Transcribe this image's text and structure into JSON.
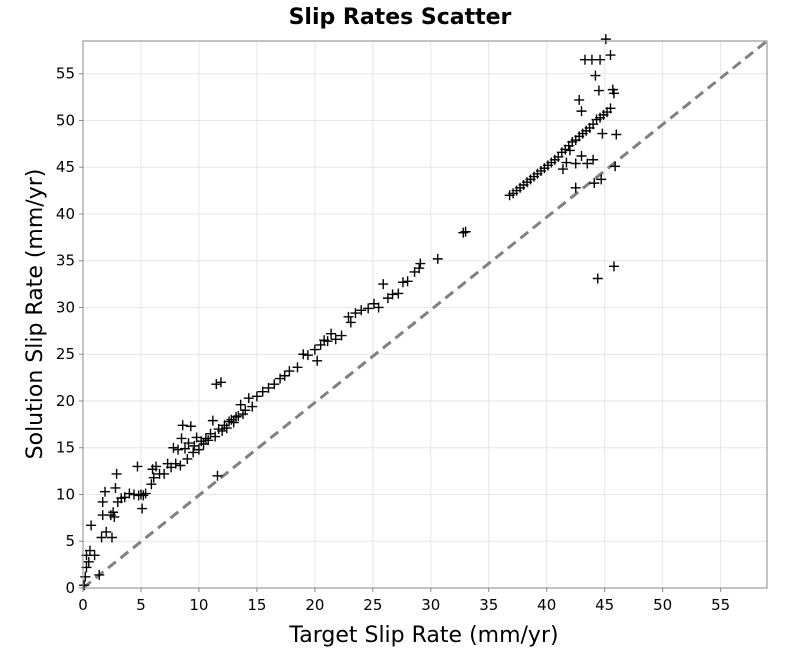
{
  "chart_data": {
    "type": "scatter",
    "title": "Slip Rates Scatter",
    "xlabel": "Target Slip Rate (mm/yr)",
    "ylabel": "Solution Slip Rate (mm/yr)",
    "xlim": [
      0,
      59
    ],
    "ylim": [
      0,
      58.5
    ],
    "xticks": [
      0,
      5,
      10,
      15,
      20,
      25,
      30,
      35,
      40,
      45,
      50,
      55
    ],
    "yticks": [
      0,
      5,
      10,
      15,
      20,
      25,
      30,
      35,
      40,
      45,
      50,
      55
    ],
    "grid": true,
    "reference_line": {
      "style": "dashed",
      "color": "#808080",
      "from": [
        0,
        0
      ],
      "to": [
        59,
        59
      ]
    },
    "marker": "plus",
    "marker_color": "#000000",
    "points": [
      [
        0.1,
        0.3
      ],
      [
        0.2,
        1.2
      ],
      [
        0.3,
        2.2
      ],
      [
        0.3,
        3.5
      ],
      [
        0.5,
        2.8
      ],
      [
        0.6,
        4.0
      ],
      [
        0.7,
        6.7
      ],
      [
        1.0,
        3.5
      ],
      [
        1.4,
        1.4
      ],
      [
        1.6,
        5.4
      ],
      [
        1.7,
        9.2
      ],
      [
        1.7,
        7.8
      ],
      [
        1.9,
        10.3
      ],
      [
        2.0,
        6.0
      ],
      [
        2.4,
        7.8
      ],
      [
        2.5,
        5.4
      ],
      [
        2.6,
        8.1
      ],
      [
        2.7,
        7.6
      ],
      [
        2.8,
        10.7
      ],
      [
        2.9,
        12.2
      ],
      [
        3.0,
        9.2
      ],
      [
        3.3,
        9.6
      ],
      [
        3.6,
        9.7
      ],
      [
        4.0,
        10.1
      ],
      [
        4.4,
        10.0
      ],
      [
        4.7,
        13.0
      ],
      [
        4.8,
        9.9
      ],
      [
        5.0,
        10.0
      ],
      [
        5.1,
        8.5
      ],
      [
        5.2,
        9.9
      ],
      [
        5.4,
        10.1
      ],
      [
        5.9,
        11.1
      ],
      [
        6.0,
        12.7
      ],
      [
        6.1,
        11.8
      ],
      [
        6.3,
        13.0
      ],
      [
        6.6,
        12.2
      ],
      [
        7.0,
        12.2
      ],
      [
        7.3,
        13.3
      ],
      [
        7.6,
        12.9
      ],
      [
        7.8,
        15.0
      ],
      [
        8.0,
        13.3
      ],
      [
        8.2,
        14.8
      ],
      [
        8.4,
        13.1
      ],
      [
        8.5,
        16.0
      ],
      [
        8.6,
        17.4
      ],
      [
        8.8,
        14.9
      ],
      [
        9.0,
        13.8
      ],
      [
        9.1,
        15.5
      ],
      [
        9.3,
        17.3
      ],
      [
        9.5,
        14.5
      ],
      [
        9.6,
        15.2
      ],
      [
        9.8,
        16.1
      ],
      [
        10.0,
        14.8
      ],
      [
        10.2,
        15.7
      ],
      [
        10.4,
        15.4
      ],
      [
        10.6,
        16.0
      ],
      [
        10.8,
        15.8
      ],
      [
        11.0,
        16.5
      ],
      [
        11.2,
        17.9
      ],
      [
        11.4,
        16.2
      ],
      [
        11.5,
        21.8
      ],
      [
        11.6,
        12.0
      ],
      [
        11.7,
        17.0
      ],
      [
        11.9,
        22.0
      ],
      [
        12.0,
        16.8
      ],
      [
        12.2,
        17.4
      ],
      [
        12.4,
        17.1
      ],
      [
        12.6,
        17.8
      ],
      [
        12.8,
        18.0
      ],
      [
        13.0,
        17.7
      ],
      [
        13.2,
        18.3
      ],
      [
        13.4,
        18.4
      ],
      [
        13.6,
        19.6
      ],
      [
        13.8,
        18.6
      ],
      [
        14.0,
        19.0
      ],
      [
        14.3,
        20.3
      ],
      [
        14.6,
        19.4
      ],
      [
        15.0,
        20.5
      ],
      [
        15.5,
        21.0
      ],
      [
        16.0,
        21.4
      ],
      [
        16.5,
        21.8
      ],
      [
        17.0,
        22.4
      ],
      [
        17.4,
        22.7
      ],
      [
        17.8,
        23.2
      ],
      [
        18.5,
        23.6
      ],
      [
        19.0,
        25.0
      ],
      [
        19.4,
        24.9
      ],
      [
        20.0,
        25.5
      ],
      [
        20.2,
        24.3
      ],
      [
        20.5,
        26.0
      ],
      [
        20.8,
        26.5
      ],
      [
        21.1,
        26.4
      ],
      [
        21.4,
        27.2
      ],
      [
        21.8,
        26.6
      ],
      [
        22.3,
        27.0
      ],
      [
        22.9,
        29.0
      ],
      [
        23.1,
        28.4
      ],
      [
        23.5,
        29.4
      ],
      [
        24.0,
        29.7
      ],
      [
        24.6,
        29.9
      ],
      [
        25.1,
        30.4
      ],
      [
        25.5,
        30.0
      ],
      [
        25.9,
        32.5
      ],
      [
        26.3,
        31.0
      ],
      [
        26.7,
        31.4
      ],
      [
        27.2,
        31.5
      ],
      [
        27.6,
        32.7
      ],
      [
        28.0,
        32.8
      ],
      [
        28.6,
        33.8
      ],
      [
        29.0,
        34.2
      ],
      [
        29.1,
        34.7
      ],
      [
        30.6,
        35.2
      ],
      [
        32.8,
        38.0
      ],
      [
        33.0,
        38.1
      ],
      [
        36.8,
        42.0
      ],
      [
        37.1,
        42.2
      ],
      [
        37.4,
        42.5
      ],
      [
        37.7,
        42.8
      ],
      [
        38.0,
        43.1
      ],
      [
        38.3,
        43.4
      ],
      [
        38.6,
        43.7
      ],
      [
        38.9,
        44.0
      ],
      [
        39.2,
        44.3
      ],
      [
        39.5,
        44.6
      ],
      [
        39.8,
        44.9
      ],
      [
        40.1,
        45.2
      ],
      [
        40.4,
        45.5
      ],
      [
        40.7,
        45.8
      ],
      [
        41.0,
        46.1
      ],
      [
        41.3,
        46.6
      ],
      [
        41.6,
        46.9
      ],
      [
        41.9,
        47.3
      ],
      [
        42.2,
        47.7
      ],
      [
        42.5,
        47.9
      ],
      [
        42.8,
        48.3
      ],
      [
        43.1,
        48.6
      ],
      [
        43.4,
        48.9
      ],
      [
        43.7,
        49.2
      ],
      [
        44.0,
        49.6
      ],
      [
        44.3,
        50.1
      ],
      [
        44.6,
        50.3
      ],
      [
        44.9,
        50.6
      ],
      [
        45.2,
        50.9
      ],
      [
        45.5,
        51.3
      ],
      [
        45.8,
        52.9
      ],
      [
        43.3,
        56.5
      ],
      [
        43.9,
        56.5
      ],
      [
        44.6,
        56.5
      ],
      [
        45.1,
        58.7
      ],
      [
        45.5,
        57.0
      ],
      [
        44.2,
        54.8
      ],
      [
        44.5,
        53.2
      ],
      [
        45.7,
        53.3
      ],
      [
        42.8,
        52.2
      ],
      [
        43.0,
        51.0
      ],
      [
        41.4,
        44.8
      ],
      [
        41.7,
        45.5
      ],
      [
        42.0,
        46.8
      ],
      [
        42.5,
        45.4
      ],
      [
        43.0,
        46.2
      ],
      [
        43.5,
        45.4
      ],
      [
        44.0,
        45.8
      ],
      [
        42.5,
        42.8
      ],
      [
        44.1,
        43.3
      ],
      [
        44.7,
        43.7
      ],
      [
        45.9,
        45.1
      ],
      [
        46.0,
        48.5
      ],
      [
        44.4,
        33.1
      ],
      [
        45.8,
        34.4
      ],
      [
        44.8,
        48.6
      ]
    ]
  }
}
